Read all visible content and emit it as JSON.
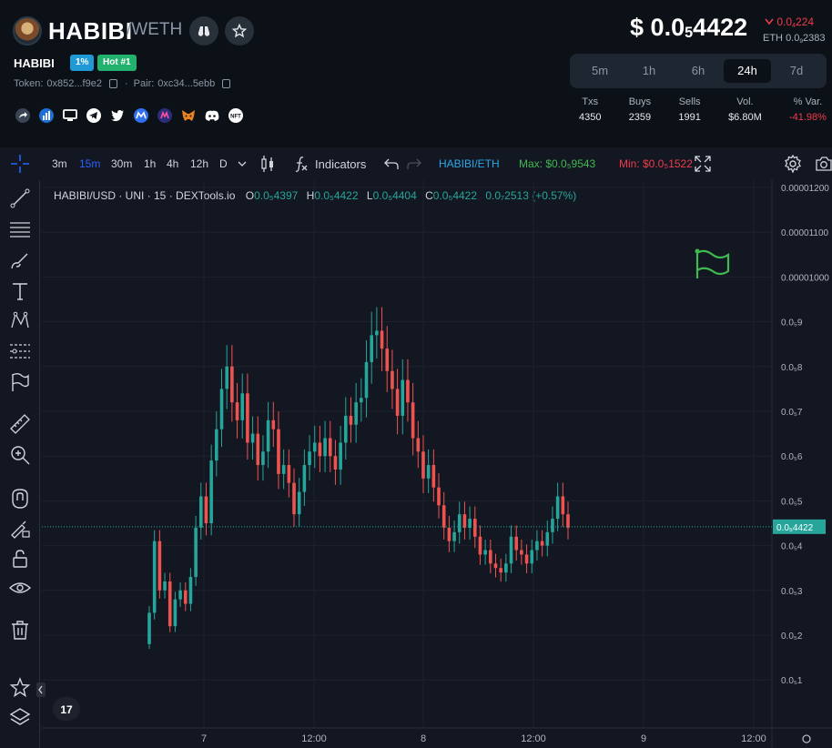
{
  "header": {
    "token_name": "HABIBI",
    "pair_quote": "/WETH",
    "sub_name": "HABIBI",
    "badge_percent": "1%",
    "badge_hot": "Hot #1",
    "token_label": "Token:",
    "token_addr": "0x852...f9e2",
    "pair_label": "Pair:",
    "pair_addr": "0xc34...5ebb",
    "socials": [
      "share-icon",
      "chart-icon",
      "website-icon",
      "telegram-icon",
      "twitter-icon",
      "coinmarketcap-icon",
      "coingecko-icon",
      "metamask-icon",
      "discord-icon",
      "nft-icon"
    ]
  },
  "price": {
    "symbol": "$",
    "prefix": "0.0",
    "sub": "5",
    "digits": "4422",
    "change_prefix": "0.0",
    "change_sub": "4",
    "change_digits": "224",
    "eth_label": "ETH",
    "eth_prefix": "0.0",
    "eth_sub": "9",
    "eth_digits": "2383"
  },
  "timeframes": [
    "5m",
    "1h",
    "6h",
    "24h",
    "7d"
  ],
  "active_timeframe": "24h",
  "stats": [
    {
      "label": "Txs",
      "value": "4350"
    },
    {
      "label": "Buys",
      "value": "2359"
    },
    {
      "label": "Sells",
      "value": "1991"
    },
    {
      "label": "Vol.",
      "value": "$6.80M"
    },
    {
      "label": "% Var.",
      "value": "-41.98%"
    }
  ],
  "toolbar": {
    "intervals": [
      "3m",
      "15m",
      "30m",
      "1h",
      "4h",
      "12h",
      "D"
    ],
    "active_interval": "15m",
    "indicators": "Indicators",
    "pair": "HABIBI/ETH",
    "max": "Max: $0.0₅9543",
    "min": "Min: $0.0₅1522"
  },
  "legend": {
    "symbol": "HABIBI/USD · UNI · 15 · DEXTools.io",
    "o": "0.0₅4397",
    "h": "0.0₅4422",
    "l": "0.0₅4404",
    "c": "0.0₅4422",
    "chg": "0.0₇2513 (+0.57%)"
  },
  "colors": {
    "up": "#26a69a",
    "down": "#ef5350",
    "accent": "#2962ff",
    "bg": "#131722"
  },
  "chart_data": {
    "type": "candlestick",
    "y_ticks": [
      "0.0₅1",
      "0.0₅2",
      "0.0₅3",
      "0.0₅4",
      "0.0₅5",
      "0.0₅6",
      "0.0₅7",
      "0.0₅8",
      "0.0₅9",
      "0.00001000",
      "0.00001100",
      "0.00001200"
    ],
    "ylim": [
      0,
      1.23e-05
    ],
    "x_ticks": [
      "7",
      "12:00",
      "8",
      "12:00",
      "9",
      "12:00"
    ],
    "last_price_label": "0.0₅4422",
    "last_price": 4.422e-06,
    "series": [
      {
        "name": "HABIBI/USD",
        "close": [
          2.5e-06,
          4.1e-06,
          3e-06,
          3.2e-06,
          2.2e-06,
          2.8e-06,
          3e-06,
          2.7e-06,
          3.3e-06,
          4.4e-06,
          5.1e-06,
          4.5e-06,
          5.9e-06,
          6.6e-06,
          7.5e-06,
          8e-06,
          7.2e-06,
          6.8e-06,
          7.4e-06,
          6.3e-06,
          6.5e-06,
          5.8e-06,
          6.1e-06,
          6.8e-06,
          6.6e-06,
          5.6e-06,
          5.8e-06,
          5.4e-06,
          4.7e-06,
          5.2e-06,
          5.8e-06,
          6.1e-06,
          6.3e-06,
          6e-06,
          6.4e-06,
          6e-06,
          5.7e-06,
          6.3e-06,
          6.9e-06,
          6.7e-06,
          7.2e-06,
          7.3e-06,
          8.1e-06,
          8.7e-06,
          8.8e-06,
          8.4e-06,
          7.9e-06,
          7.5e-06,
          6.9e-06,
          7.7e-06,
          7.2e-06,
          6.4e-06,
          6.1e-06,
          5.5e-06,
          5.8e-06,
          5.3e-06,
          4.9e-06,
          4.4e-06,
          4.1e-06,
          4.3e-06,
          4.7e-06,
          4.4e-06,
          4.6e-06,
          4.2e-06,
          3.8e-06,
          3.9e-06,
          3.6e-06,
          3.5e-06,
          3.4e-06,
          3.6e-06,
          4.2e-06,
          3.9e-06,
          3.8e-06,
          3.6e-06,
          3.9e-06,
          4.1e-06,
          4e-06,
          4.3e-06,
          4.6e-06,
          5.1e-06,
          4.7e-06,
          4.4e-06
        ]
      }
    ]
  }
}
